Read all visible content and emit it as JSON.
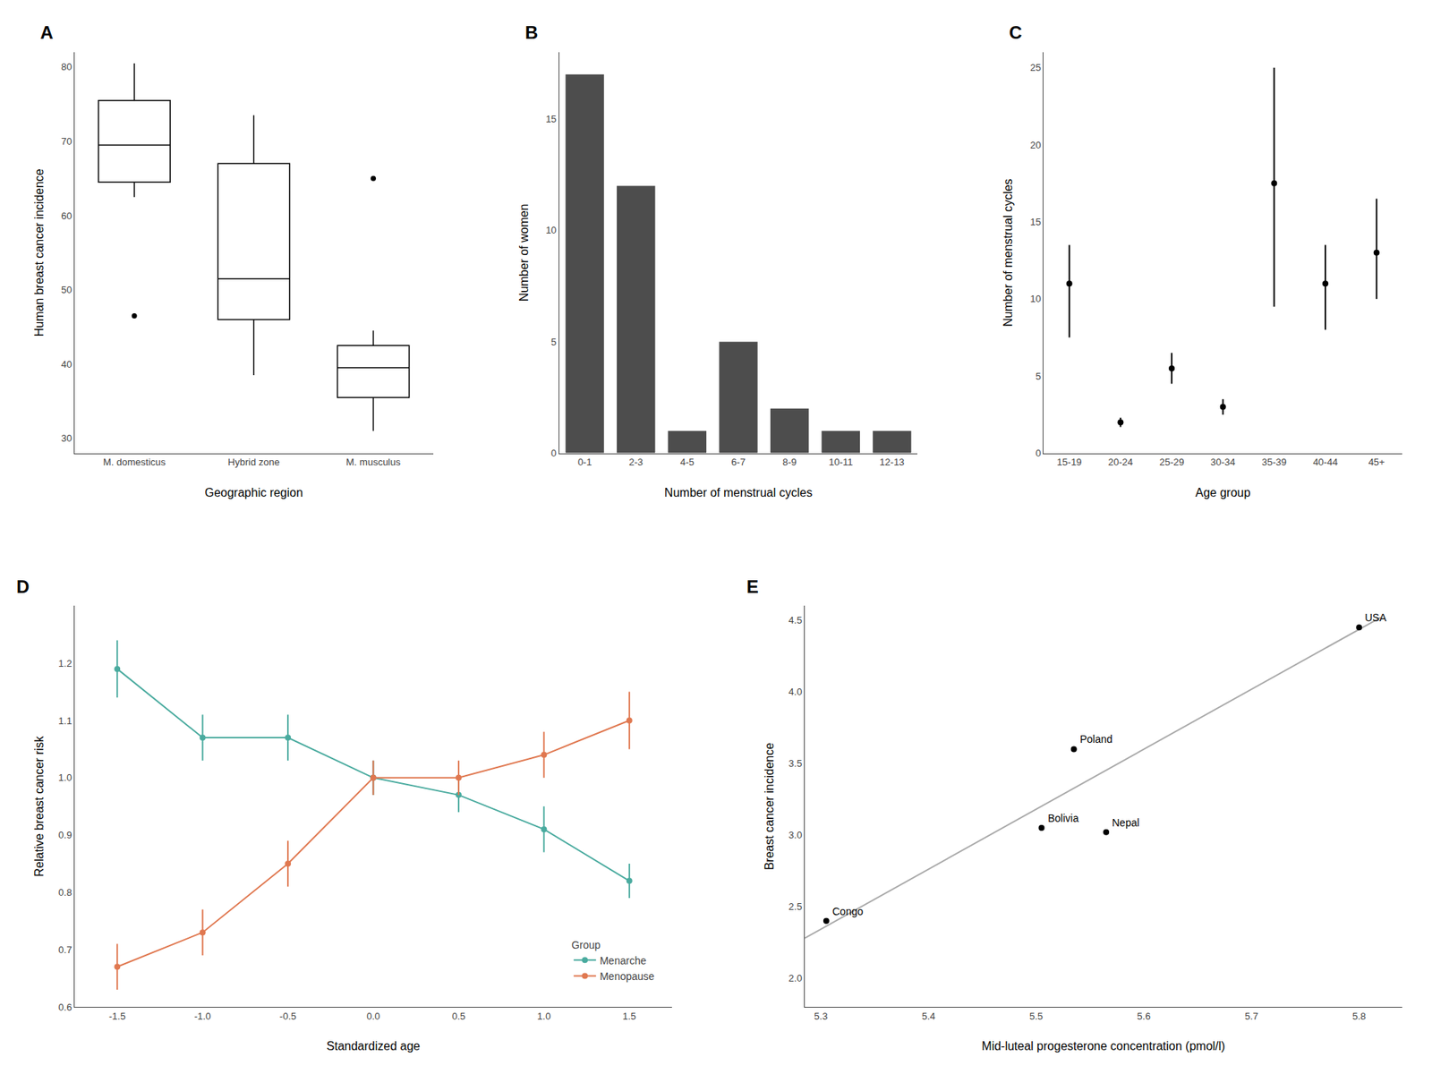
{
  "chart_data": [
    {
      "type": "box",
      "title": "A",
      "xlabel": "Geographic region",
      "ylabel": "Human breast cancer incidence",
      "categories": [
        "M. domesticus",
        "Hybrid zone",
        "M. musculus"
      ],
      "boxes": [
        {
          "median": 69.5,
          "q1": 64.5,
          "q3": 75.5,
          "lower_whisker": 62.5,
          "upper_whisker": 80.5,
          "outliers": [
            46.5
          ]
        },
        {
          "median": 51.5,
          "q1": 46.0,
          "q3": 67.0,
          "lower_whisker": 38.5,
          "upper_whisker": 73.5,
          "outliers": []
        },
        {
          "median": 39.5,
          "q1": 35.5,
          "q3": 42.5,
          "lower_whisker": 31.0,
          "upper_whisker": 44.5,
          "outliers": [
            65.0
          ]
        }
      ],
      "color": "#000000",
      "ylim": [
        28,
        82
      ],
      "yticks": [
        30,
        40,
        50,
        60,
        70,
        80
      ],
      "grid": false
    },
    {
      "type": "bar",
      "title": "B",
      "xlabel": "Number of menstrual cycles",
      "ylabel": "Number of women",
      "categories": [
        "0-1",
        "2-3",
        "4-5",
        "6-7",
        "8-9",
        "10-11",
        "12-13"
      ],
      "values": [
        17,
        12,
        1,
        5,
        2,
        1,
        1
      ],
      "color": "#4d4d4d",
      "ylim": [
        0,
        18
      ],
      "yticks": [
        0,
        5,
        10,
        15
      ],
      "grid": false
    },
    {
      "type": "scatter",
      "title": "C",
      "xlabel": "Age group",
      "ylabel": "Number of menstrual cycles",
      "categories": [
        "15-19",
        "20-24",
        "25-29",
        "30-34",
        "35-39",
        "40-44",
        "45+"
      ],
      "values": [
        11.0,
        2.0,
        5.5,
        3.0,
        17.5,
        11.0,
        13.0
      ],
      "ci_low": [
        7.5,
        1.7,
        4.5,
        2.5,
        9.5,
        8.0,
        10.0
      ],
      "ci_high": [
        13.5,
        2.3,
        6.5,
        3.5,
        25.0,
        13.5,
        16.5
      ],
      "color": "#000000",
      "marker": "circle",
      "ylim": [
        0,
        26
      ],
      "yticks": [
        0,
        5,
        10,
        15,
        20,
        25
      ],
      "grid": false
    },
    {
      "type": "line",
      "title": "D",
      "xlabel": "Standardized age",
      "ylabel": "Relative breast cancer risk",
      "x": [
        -1.5,
        -1.0,
        -0.5,
        0.0,
        0.5,
        1.0,
        1.5
      ],
      "series": [
        {
          "name": "Menarche",
          "color": "#4aab9f",
          "marker": "circle",
          "values": [
            1.19,
            1.07,
            1.07,
            1.0,
            0.97,
            0.91,
            0.82
          ],
          "ci_low": [
            1.14,
            1.03,
            1.03,
            0.97,
            0.94,
            0.87,
            0.79
          ],
          "ci_high": [
            1.24,
            1.11,
            1.11,
            1.03,
            1.0,
            0.95,
            0.85
          ]
        },
        {
          "name": "Menopause",
          "color": "#e07850",
          "marker": "circle",
          "values": [
            0.67,
            0.73,
            0.85,
            1.0,
            1.0,
            1.04,
            1.1
          ],
          "ci_low": [
            0.63,
            0.69,
            0.81,
            0.97,
            0.97,
            1.0,
            1.05
          ],
          "ci_high": [
            0.71,
            0.77,
            0.89,
            1.03,
            1.03,
            1.08,
            1.15
          ]
        }
      ],
      "xlim": [
        -1.75,
        1.75
      ],
      "xticks": [
        -1.5,
        {
          "value": -1,
          "label": "-1.0"
        },
        -0.5,
        {
          "value": 0,
          "label": "0.0"
        },
        0.5,
        {
          "value": 1,
          "label": "1.0"
        },
        1.5
      ],
      "ylim": [
        0.6,
        1.3
      ],
      "yticks": [
        0.6,
        0.7,
        0.8,
        0.9,
        {
          "value": 1,
          "label": "1.0"
        },
        1.1,
        1.2
      ],
      "legend": "lower right",
      "legend_title": "Group",
      "grid": false
    },
    {
      "type": "scatter",
      "title": "E",
      "xlabel": "Mid-luteal progesterone concentration (pmol/l)",
      "ylabel": "Breast cancer incidence",
      "series": [
        {
          "type": "line",
          "color": "#aaaaaa",
          "x": [
            5.285,
            5.82
          ],
          "values": [
            2.28,
            4.52
          ]
        },
        {
          "type": "scatter",
          "color": "#000000",
          "marker": "circle",
          "x": [
            5.305,
            5.505,
            5.535,
            5.565,
            5.8
          ],
          "values": [
            2.4,
            3.05,
            3.6,
            3.02,
            4.45
          ],
          "labels": [
            "Congo",
            "Bolivia",
            "Poland",
            "Nepal",
            "USA"
          ]
        }
      ],
      "xlim": [
        5.285,
        5.84
      ],
      "xticks": [
        5.3,
        5.4,
        5.5,
        5.6,
        5.7,
        5.8
      ],
      "ylim": [
        1.8,
        4.6
      ],
      "yticks": [
        {
          "value": 2,
          "label": "2.0"
        },
        2.5,
        {
          "value": 3,
          "label": "3.0"
        },
        3.5,
        {
          "value": 4,
          "label": "4.0"
        },
        4.5
      ],
      "grid": false
    }
  ]
}
